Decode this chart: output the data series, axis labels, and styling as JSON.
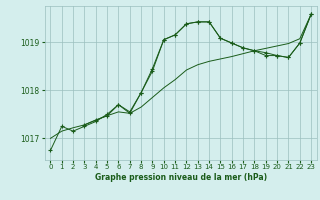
{
  "title": "Graphe pression niveau de la mer (hPa)",
  "bg_color": "#d4eeed",
  "plot_bg_color": "#d4eeed",
  "grid_color": "#9bbfbf",
  "line_color": "#1a5c1a",
  "xlim": [
    -0.5,
    23.5
  ],
  "ylim": [
    1016.55,
    1019.75
  ],
  "yticks": [
    1017,
    1018,
    1019
  ],
  "xticks": [
    0,
    1,
    2,
    3,
    4,
    5,
    6,
    7,
    8,
    9,
    10,
    11,
    12,
    13,
    14,
    15,
    16,
    17,
    18,
    19,
    20,
    21,
    22,
    23
  ],
  "series1_x": [
    0,
    1,
    2,
    3,
    4,
    5,
    6,
    7,
    8,
    9,
    10,
    11,
    12,
    13,
    14,
    15,
    16,
    17,
    18,
    19,
    20,
    21,
    22,
    23
  ],
  "series1_y": [
    1016.75,
    1017.25,
    1017.15,
    1017.25,
    1017.35,
    1017.5,
    1017.7,
    1017.55,
    1017.95,
    1018.45,
    1019.05,
    1019.15,
    1019.38,
    1019.42,
    1019.42,
    1019.08,
    1018.98,
    1018.88,
    1018.82,
    1018.78,
    1018.72,
    1018.68,
    1018.98,
    1019.58
  ],
  "series2_x": [
    0,
    1,
    2,
    3,
    4,
    5,
    6,
    7,
    8,
    9,
    10,
    11,
    12,
    13,
    14,
    15,
    16,
    17,
    18,
    19,
    20,
    21,
    22,
    23
  ],
  "series2_y": [
    1017.0,
    1017.15,
    1017.22,
    1017.28,
    1017.38,
    1017.47,
    1017.55,
    1017.52,
    1017.65,
    1017.85,
    1018.05,
    1018.22,
    1018.42,
    1018.53,
    1018.6,
    1018.65,
    1018.7,
    1018.76,
    1018.82,
    1018.87,
    1018.92,
    1018.97,
    1019.07,
    1019.58
  ],
  "series3_x": [
    3,
    4,
    5,
    6,
    7,
    8,
    9,
    10,
    11,
    12,
    13,
    14,
    15,
    16,
    17,
    18,
    19,
    20,
    21,
    22,
    23
  ],
  "series3_y": [
    1017.28,
    1017.38,
    1017.47,
    1017.7,
    1017.52,
    1017.95,
    1018.4,
    1019.05,
    1019.15,
    1019.38,
    1019.42,
    1019.42,
    1019.08,
    1018.98,
    1018.88,
    1018.82,
    1018.72,
    1018.72,
    1018.68,
    1018.98,
    1019.58
  ]
}
